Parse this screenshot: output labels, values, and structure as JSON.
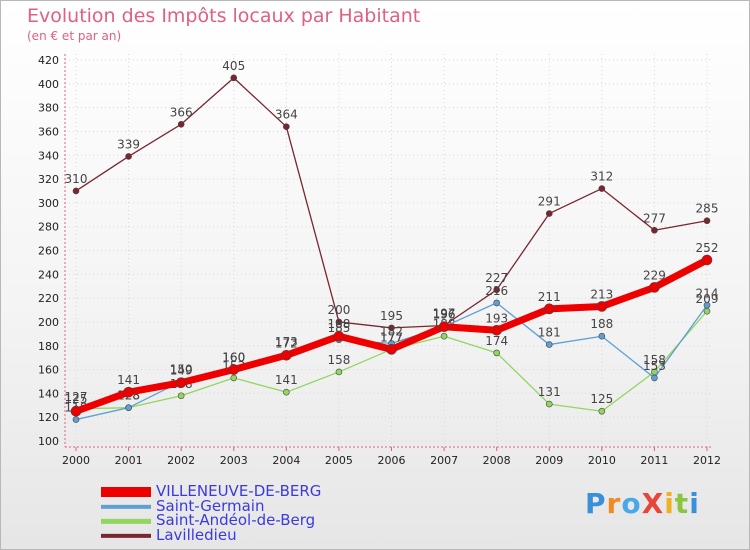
{
  "title": "Evolution des Impôts locaux par Habitant",
  "subtitle": "(en € et par an)",
  "brand": "ProXiti",
  "chart_data": {
    "type": "line",
    "title": "Evolution des Impôts locaux par Habitant",
    "subtitle": "(en € et par an)",
    "xlabel": "",
    "ylabel": "",
    "ylim": [
      100,
      420
    ],
    "yticks": [
      100,
      120,
      140,
      160,
      180,
      200,
      220,
      240,
      260,
      280,
      300,
      320,
      340,
      360,
      380,
      400,
      420
    ],
    "categories": [
      "2000",
      "2001",
      "2002",
      "2003",
      "2004",
      "2005",
      "2006",
      "2007",
      "2008",
      "2009",
      "2010",
      "2011",
      "2012"
    ],
    "grid": true,
    "legend_position": "bottom-left",
    "series": [
      {
        "name": "Lavilledieu",
        "color": "#7a2630",
        "values": [
          310,
          339,
          366,
          405,
          364,
          200,
          195,
          197,
          227,
          291,
          312,
          277,
          285
        ]
      },
      {
        "name": "Saint-Andéol-de-Berg",
        "color": "#92d660",
        "values": [
          127,
          128,
          138,
          153,
          141,
          158,
          177,
          188,
          174,
          131,
          125,
          158,
          209
        ]
      },
      {
        "name": "Saint-Germain",
        "color": "#5f9fd3",
        "values": [
          118,
          128,
          150,
          160,
          173,
          185,
          182,
          196,
          216,
          181,
          188,
          153,
          214
        ]
      },
      {
        "name": "VILLENEUVE-DE-BERG",
        "color": "#ee0000",
        "values": [
          125,
          141,
          149,
          160,
          172,
          188,
          177,
          196,
          193,
          211,
          213,
          229,
          252
        ]
      }
    ],
    "legend_order": [
      "VILLENEUVE-DE-BERG",
      "Saint-Germain",
      "Saint-Andéol-de-Berg",
      "Lavilledieu"
    ]
  }
}
